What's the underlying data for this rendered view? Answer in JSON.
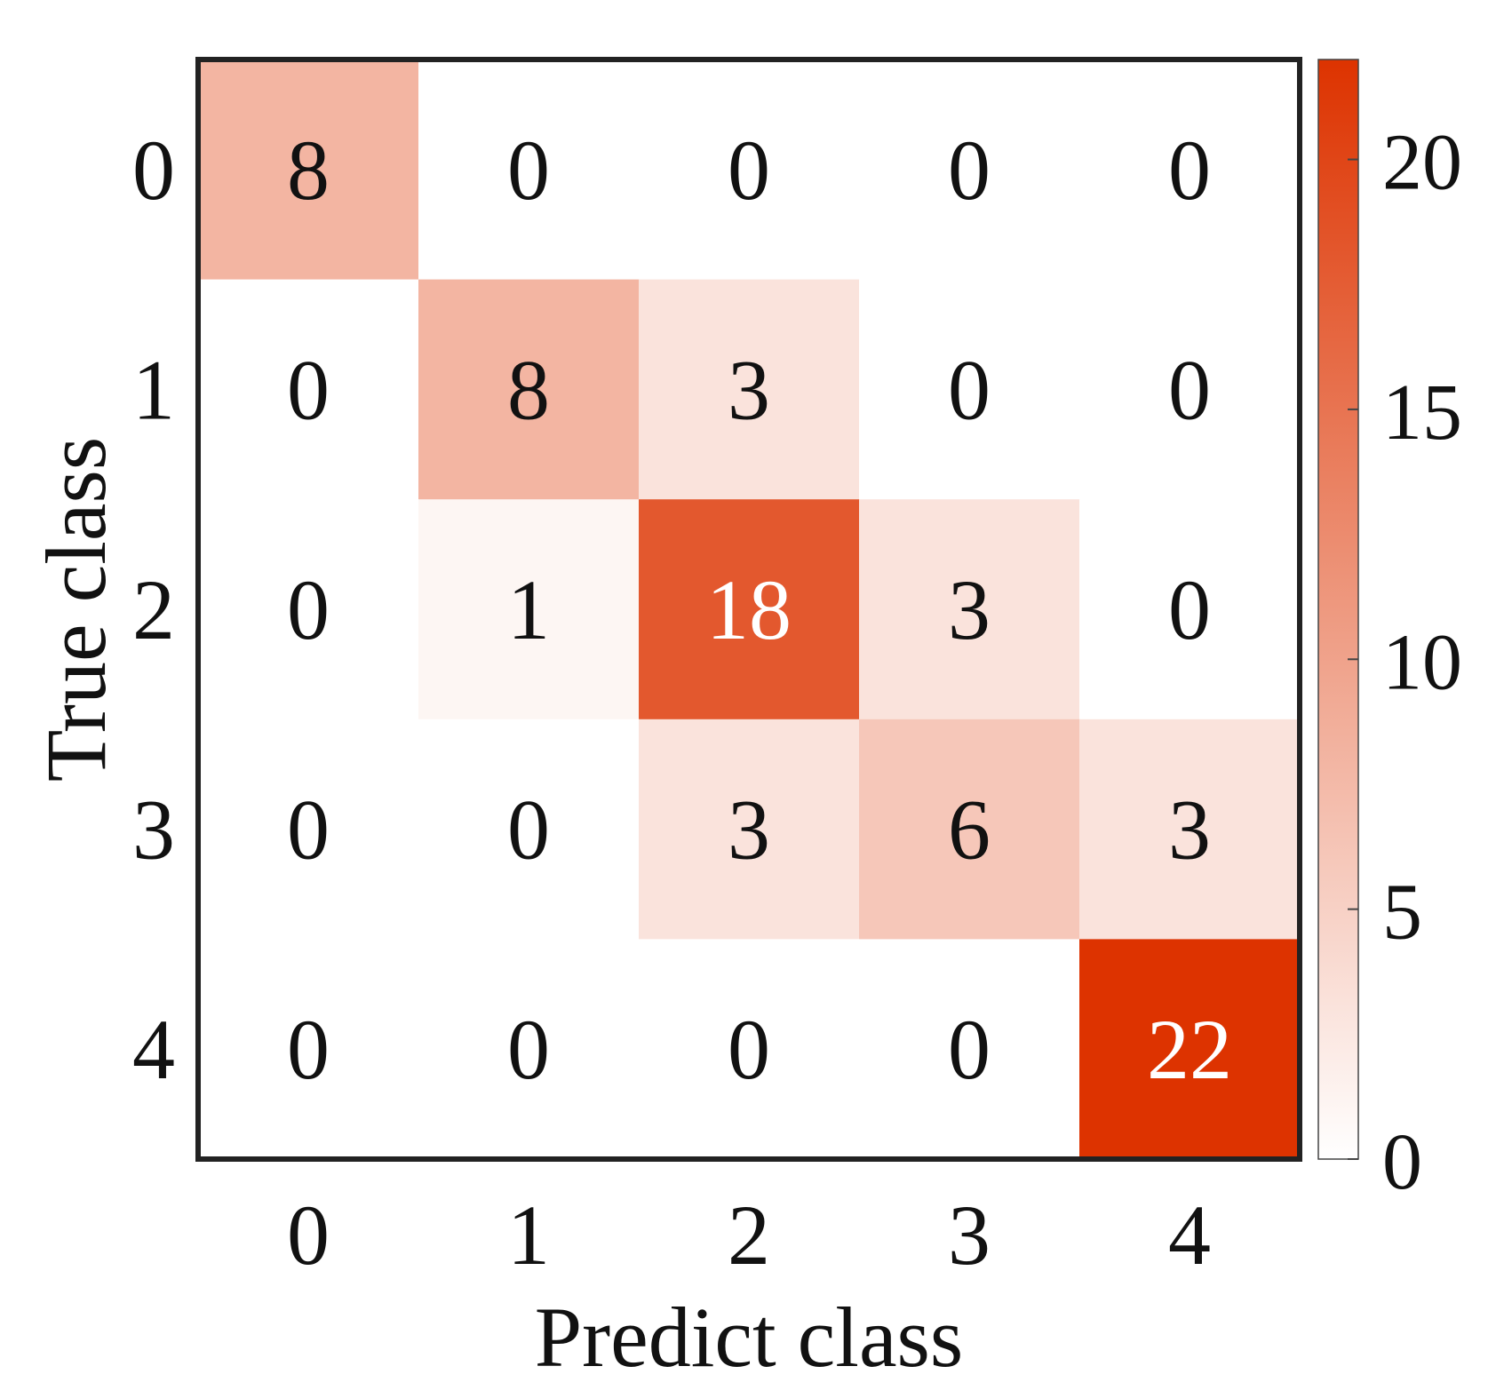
{
  "chart_data": {
    "type": "heatmap",
    "title": "",
    "xlabel": "Predict class",
    "ylabel": "True class",
    "x_categories": [
      "0",
      "1",
      "2",
      "3",
      "4"
    ],
    "y_categories": [
      "0",
      "1",
      "2",
      "3",
      "4"
    ],
    "matrix": [
      [
        8,
        0,
        0,
        0,
        0
      ],
      [
        0,
        8,
        3,
        0,
        0
      ],
      [
        0,
        1,
        18,
        3,
        0
      ],
      [
        0,
        0,
        3,
        6,
        3
      ],
      [
        0,
        0,
        0,
        0,
        22
      ]
    ],
    "colorbar": {
      "range": [
        0,
        22
      ],
      "ticks": [
        0,
        5,
        10,
        15,
        20
      ],
      "color_low": "#ffffff",
      "color_high": "#dd3300"
    },
    "grid": false
  }
}
